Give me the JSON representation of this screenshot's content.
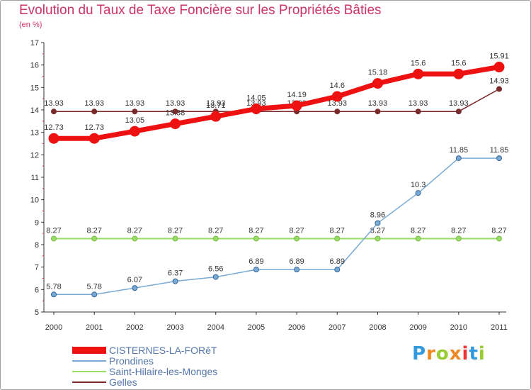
{
  "chart_data": {
    "type": "line",
    "title": "Evolution du Taux de Taxe Foncière sur les Propriétés Bâties",
    "ylabel": "(en %)",
    "xlabel": "",
    "categories": [
      "2000",
      "2001",
      "2002",
      "2003",
      "2004",
      "2005",
      "2006",
      "2007",
      "2008",
      "2009",
      "2010",
      "2011"
    ],
    "ylim": [
      5,
      17
    ],
    "yticks": [
      5,
      6,
      7,
      8,
      9,
      10,
      11,
      12,
      13,
      14,
      15,
      16,
      17
    ],
    "series": [
      {
        "name": "Gelles",
        "color": "#7a2a2a",
        "values": [
          13.93,
          13.93,
          13.93,
          13.93,
          13.93,
          13.93,
          13.93,
          13.93,
          13.93,
          13.93,
          13.93,
          14.93
        ],
        "labels": [
          "13.93",
          "13.93",
          "13.93",
          "13.93",
          "13.93",
          "13.93",
          "13.93",
          "13.93",
          "13.93",
          "13.93",
          "13.93",
          "14.93"
        ]
      },
      {
        "name": "Saint-Hilaire-les-Monges",
        "color": "#99dd66",
        "values": [
          8.27,
          8.27,
          8.27,
          8.27,
          8.27,
          8.27,
          8.27,
          8.27,
          8.27,
          8.27,
          8.27,
          8.27
        ],
        "labels": [
          "8.27",
          "8.27",
          "8.27",
          "8.27",
          "8.27",
          "8.27",
          "8.27",
          "8.27",
          "8.27",
          "8.27",
          "8.27",
          "8.27"
        ]
      },
      {
        "name": "Prondines",
        "color": "#7aaad4",
        "values": [
          5.78,
          5.78,
          6.07,
          6.37,
          6.56,
          6.89,
          6.89,
          6.89,
          8.96,
          10.3,
          11.85,
          11.85
        ],
        "labels": [
          "5.78",
          "5.78",
          "6.07",
          "6.37",
          "6.56",
          "6.89",
          "6.89",
          "6.89",
          "8.96",
          "10.3",
          "11.85",
          "11.85"
        ]
      },
      {
        "name": "CISTERNES-LA-FORêT",
        "color": "#ee1111",
        "values": [
          12.73,
          12.73,
          13.05,
          13.38,
          13.71,
          14.05,
          14.19,
          14.6,
          15.18,
          15.6,
          15.6,
          15.91
        ],
        "labels": [
          "12.73",
          "12.73",
          "13.05",
          "13.38",
          "13.71",
          "14.05",
          "14.19",
          "14.6",
          "15.18",
          "15.6",
          "15.6",
          "15.91"
        ]
      }
    ],
    "legend": [
      "CISTERNES-LA-FORêT",
      "Prondines",
      "Saint-Hilaire-les-Monges",
      "Gelles"
    ],
    "legend_position": "bottom-left",
    "grid": false
  },
  "brand": {
    "letters": [
      "P",
      "r",
      "o",
      "x",
      "i",
      "t",
      "i"
    ],
    "colors": [
      "#3399dd",
      "#ee8822",
      "#99cc33",
      "#ee8822",
      "#ee3333",
      "#3399dd",
      "#99cc33"
    ]
  }
}
